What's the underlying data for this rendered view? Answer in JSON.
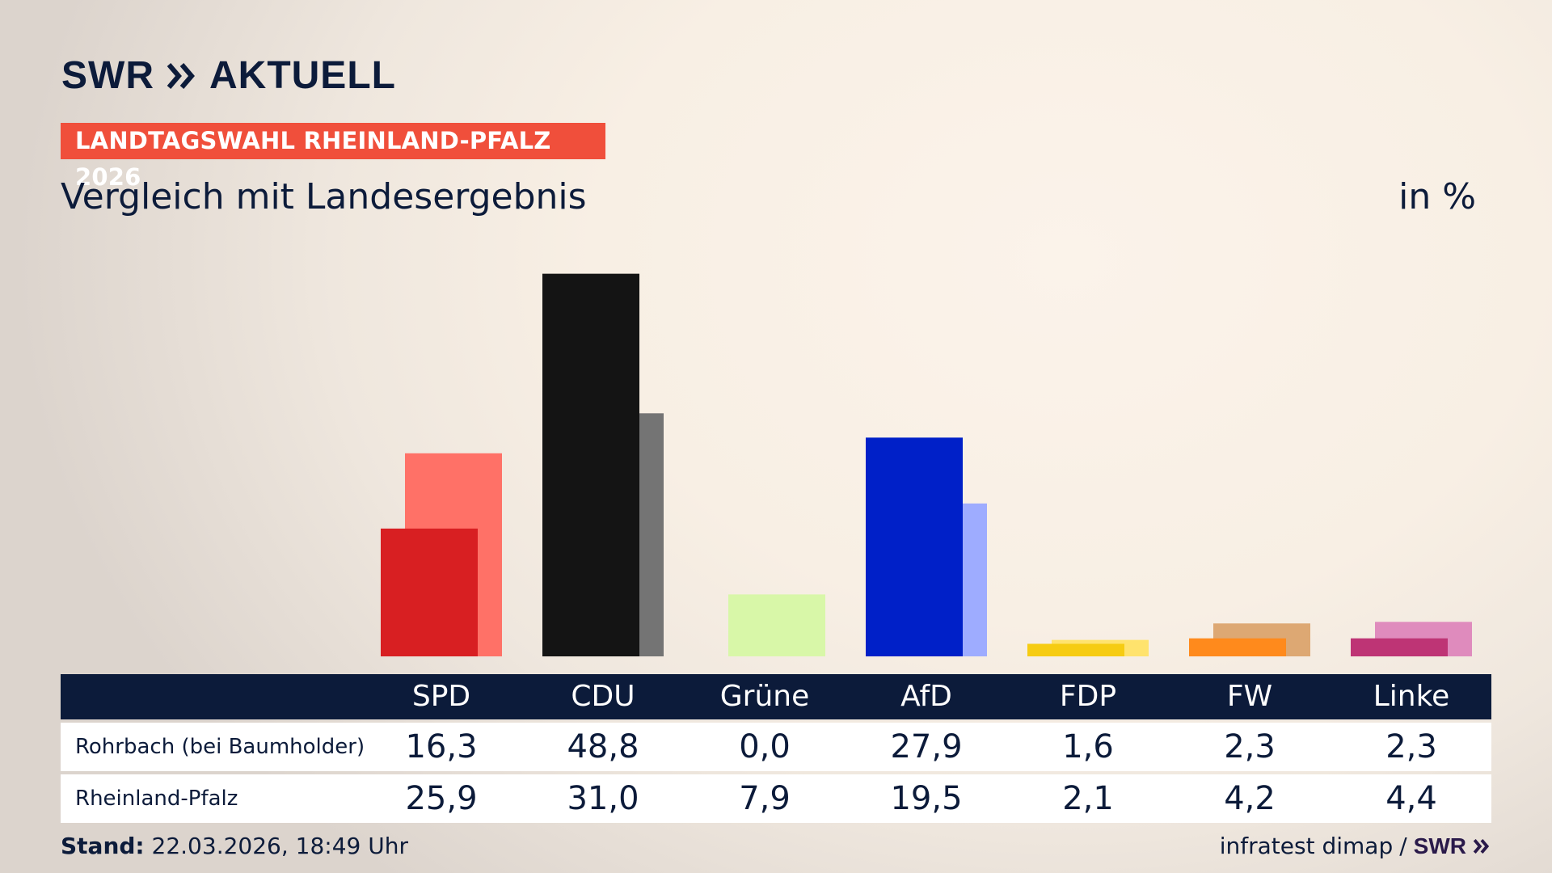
{
  "brand": {
    "swr": "SWR",
    "aktuell": "AKTUELL"
  },
  "badge": "LANDTAGSWAHL RHEINLAND-PFALZ 2026",
  "subtitle": "Vergleich mit Landesergebnis",
  "unit": "in %",
  "table": {
    "rows": [
      {
        "label": "Rohrbach (bei Baumholder)",
        "values": [
          "16,3",
          "48,8",
          "0,0",
          "27,9",
          "1,6",
          "2,3",
          "2,3"
        ]
      },
      {
        "label": "Rheinland-Pfalz",
        "values": [
          "25,9",
          "31,0",
          "7,9",
          "19,5",
          "2,1",
          "4,2",
          "4,4"
        ]
      }
    ]
  },
  "footer": {
    "stand_label": "Stand:",
    "stand_value": "22.03.2026, 18:49 Uhr",
    "source": "infratest dimap",
    "separator": "/",
    "swr": "SWR"
  },
  "chart_data": {
    "type": "bar",
    "categories": [
      "SPD",
      "CDU",
      "Grüne",
      "AfD",
      "FDP",
      "FW",
      "Linke"
    ],
    "series": [
      {
        "name": "Rohrbach (bei Baumholder)",
        "values": [
          16.3,
          48.8,
          0.0,
          27.9,
          1.6,
          2.3,
          2.3
        ]
      },
      {
        "name": "Rheinland-Pfalz",
        "values": [
          25.9,
          31.0,
          7.9,
          19.5,
          2.1,
          4.2,
          4.4
        ]
      }
    ],
    "colors": {
      "local": [
        "#d81f22",
        "#141414",
        "#4f9a2a",
        "#0020c8",
        "#f6cc12",
        "#ff8a1c",
        "#be3475"
      ],
      "state": [
        "#ff7167",
        "#747474",
        "#d8f7a8",
        "#9eacff",
        "#ffe36d",
        "#dda873",
        "#df8bbd"
      ]
    },
    "ylim": [
      0,
      50
    ],
    "grid": false,
    "legend": "table-below"
  }
}
